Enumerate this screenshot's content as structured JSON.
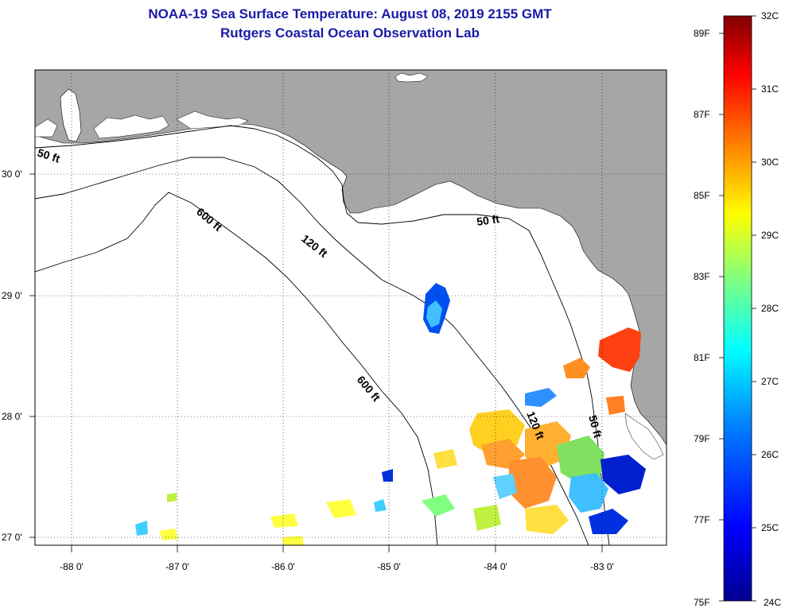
{
  "title": "NOAA-19 Sea Surface Temperature:  August 08, 2019 2155 GMT",
  "subtitle": "Rutgers Coastal Ocean Observation Lab",
  "lat_labels": [
    "30 0'",
    "29 0'",
    "28 0'",
    "27 0'"
  ],
  "lon_labels": [
    "-88 0'",
    "-87 0'",
    "-86 0'",
    "-85 0'",
    "-84 0'",
    "-83 0'"
  ],
  "contours": {
    "c50a": "50 ft",
    "c50b": "50 ft",
    "c50c": "50 ft",
    "c120a": "120 ft",
    "c120b": "120 ft",
    "c600a": "600 ft",
    "c600b": "600 ft"
  },
  "colorbar": {
    "celsius": [
      "32C",
      "31C",
      "30C",
      "29C",
      "28C",
      "27C",
      "26C",
      "25C",
      "24C"
    ],
    "fahrenheit": [
      "89F",
      "87F",
      "85F",
      "83F",
      "81F",
      "79F",
      "77F",
      "75F"
    ],
    "colors": [
      "#00008f",
      "#0000ff",
      "#0080ff",
      "#00ffff",
      "#80ff80",
      "#ffff00",
      "#ff8000",
      "#ff0000",
      "#800000"
    ]
  },
  "colors": {
    "land": "#a6a6a6",
    "water": "#ffffff",
    "title": "#1a1aa6"
  }
}
